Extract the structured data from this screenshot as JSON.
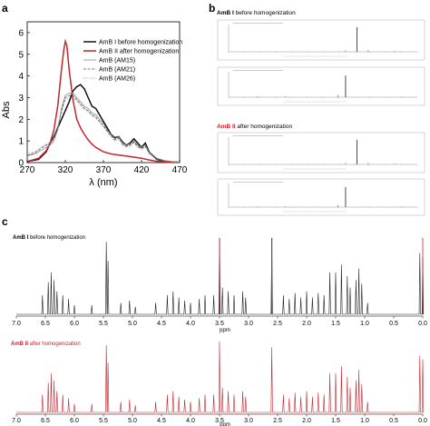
{
  "panels": {
    "a": "a",
    "b": "b",
    "c": "c"
  },
  "colors": {
    "amb1": "#111111",
    "amb2": "#c4262e",
    "am15": "#888888",
    "am21": "#555555",
    "am26": "#999999"
  },
  "chart_data": [
    {
      "type": "line",
      "panel": "a",
      "xlabel": "λ (nm)",
      "ylabel": "Abs",
      "xlim": [
        270,
        470
      ],
      "ylim": [
        0,
        6.5
      ],
      "x_ticks": [
        "270",
        "320",
        "370",
        "420",
        "470"
      ],
      "y_ticks": [
        "0",
        "1",
        "2",
        "3",
        "4",
        "5",
        "6"
      ],
      "legend_position": "top-right",
      "series": [
        {
          "name": "AmB I before homogenization",
          "color": "#111111",
          "style": "solid",
          "x": [
            270,
            285,
            295,
            300,
            305,
            310,
            315,
            320,
            325,
            330,
            335,
            340,
            345,
            350,
            355,
            360,
            365,
            370,
            375,
            380,
            385,
            390,
            395,
            400,
            405,
            410,
            415,
            420,
            425,
            430,
            440,
            450,
            460,
            470
          ],
          "y": [
            0.05,
            0.15,
            0.5,
            0.9,
            1.2,
            1.6,
            2.0,
            2.4,
            2.8,
            3.3,
            3.5,
            3.6,
            3.4,
            3.0,
            2.6,
            2.5,
            2.2,
            1.9,
            1.6,
            1.3,
            1.15,
            1.2,
            0.95,
            0.8,
            0.9,
            1.1,
            0.9,
            0.7,
            0.9,
            0.5,
            0.15,
            0.05,
            0.02,
            0.01
          ]
        },
        {
          "name": "AmB II after homogenization",
          "color": "#c4262e",
          "style": "solid",
          "x": [
            270,
            285,
            295,
            300,
            305,
            310,
            315,
            318,
            320,
            322,
            325,
            330,
            335,
            340,
            345,
            350,
            355,
            360,
            365,
            370,
            380,
            390,
            400,
            410,
            420,
            430,
            440,
            450,
            460,
            470
          ],
          "y": [
            0.05,
            0.2,
            0.55,
            0.9,
            1.5,
            2.6,
            4.3,
            5.2,
            5.6,
            5.4,
            4.3,
            2.9,
            2.0,
            1.6,
            1.3,
            1.05,
            0.85,
            0.7,
            0.6,
            0.5,
            0.4,
            0.35,
            0.3,
            0.25,
            0.2,
            0.12,
            0.06,
            0.03,
            0.02,
            0.01
          ]
        },
        {
          "name": "AmB (AM15)",
          "color": "#888888",
          "style": "solid",
          "x": [
            270,
            280,
            290,
            300,
            305,
            310,
            315,
            320,
            325,
            330,
            335,
            340,
            345,
            350,
            355,
            360,
            365,
            370,
            375,
            380,
            385,
            390,
            395,
            400,
            405,
            410,
            415,
            420,
            425,
            430,
            440,
            450,
            460,
            470
          ],
          "y": [
            0.3,
            0.4,
            0.6,
            0.8,
            1.0,
            1.5,
            2.5,
            3.1,
            3.2,
            3.2,
            3.0,
            2.8,
            2.6,
            2.5,
            2.3,
            2.2,
            2.0,
            1.8,
            1.5,
            1.3,
            1.1,
            1.2,
            0.9,
            0.8,
            0.85,
            1.0,
            0.8,
            0.7,
            0.8,
            0.5,
            0.2,
            0.1,
            0.05,
            0.02
          ]
        },
        {
          "name": "AmB (AM21)",
          "color": "#555555",
          "style": "dashed",
          "x": [
            270,
            280,
            290,
            300,
            305,
            310,
            315,
            320,
            325,
            330,
            335,
            340,
            345,
            350,
            355,
            360,
            365,
            370,
            375,
            380,
            385,
            390,
            395,
            400,
            405,
            410,
            415,
            420,
            425,
            430,
            440,
            450,
            460,
            470
          ],
          "y": [
            0.35,
            0.45,
            0.7,
            0.9,
            1.1,
            1.6,
            2.4,
            3.0,
            3.1,
            3.1,
            2.9,
            2.7,
            2.5,
            2.4,
            2.2,
            2.1,
            1.9,
            1.7,
            1.45,
            1.25,
            1.05,
            1.15,
            0.85,
            0.75,
            0.8,
            0.95,
            0.75,
            0.65,
            0.75,
            0.45,
            0.18,
            0.08,
            0.04,
            0.02
          ]
        },
        {
          "name": "AmB (AM26)",
          "color": "#999999",
          "style": "dotted",
          "x": [
            270,
            280,
            290,
            300,
            305,
            310,
            315,
            320,
            325,
            330,
            335,
            340,
            345,
            350,
            355,
            360,
            365,
            370,
            375,
            380,
            385,
            390,
            395,
            400,
            405,
            410,
            415,
            420,
            425,
            430,
            440,
            450,
            460,
            470
          ],
          "y": [
            0.4,
            0.5,
            0.75,
            0.95,
            1.15,
            1.7,
            2.3,
            2.9,
            3.0,
            3.0,
            2.85,
            2.65,
            2.45,
            2.35,
            2.15,
            2.05,
            1.85,
            1.65,
            1.4,
            1.2,
            1.0,
            1.1,
            0.8,
            0.7,
            0.75,
            0.9,
            0.7,
            0.6,
            0.7,
            0.4,
            0.15,
            0.07,
            0.03,
            0.02
          ]
        }
      ]
    }
  ],
  "ms_panel": {
    "title_top": {
      "bold": "AmB I",
      "rest": " before homogenization"
    },
    "title_bottom": {
      "bold": "AmB II",
      "rest": " after homogenization"
    }
  },
  "nmr_panel": {
    "title_top": {
      "bold": "AmB I",
      "rest": " before homogenization"
    },
    "title_bottom": {
      "bold": "AmB II",
      "rest": " after homogenization"
    },
    "x_ticks": [
      "7.0",
      "6.5",
      "6.0",
      "5.5",
      "5.0",
      "4.5",
      "4.0",
      "3.5",
      "3.0",
      "2.5",
      "2.0",
      "1.5",
      "1.0",
      "0.5",
      "0.0"
    ],
    "x_unit": "ppm"
  }
}
